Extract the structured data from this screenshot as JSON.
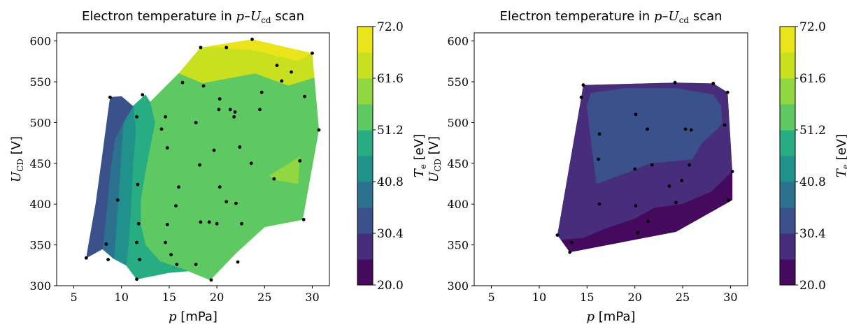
{
  "chart_data": [
    {
      "type": "heatmap",
      "title": "Electron temperature in p–U",
      "title_sub": "cd",
      "title_suffix": " scan",
      "xlabel_var": "p",
      "xlabel_unit": " [mPa]",
      "ylabel_var": "U",
      "ylabel_sub": "CD",
      "ylabel_unit": " [V]",
      "xlim": [
        3.2,
        31.8
      ],
      "ylim": [
        300,
        610
      ],
      "xticks": [
        5,
        10,
        15,
        20,
        25,
        30
      ],
      "yticks": [
        300,
        350,
        400,
        450,
        500,
        550,
        600
      ],
      "colorbar": {
        "label_var": "T",
        "label_sub": "e",
        "label_unit": " [eV]",
        "vmin": 20.0,
        "vmax": 72.0,
        "ticks": [
          "20.0",
          "30.4",
          "40.8",
          "51.2",
          "61.6",
          "72.0"
        ],
        "levels": [
          20.0,
          25.2,
          30.4,
          35.6,
          40.8,
          46.0,
          51.2,
          56.4,
          61.6,
          66.8,
          72.0
        ],
        "colors": [
          "#450a5d",
          "#472d7b",
          "#3b518b",
          "#2c718e",
          "#21918c",
          "#27ad81",
          "#5ec962",
          "#91d742",
          "#c8e020",
          "#e9e51a"
        ]
      },
      "hull": [
        [
          6.3,
          334
        ],
        [
          11.6,
          308
        ],
        [
          19.3,
          307
        ],
        [
          29.0,
          381
        ],
        [
          30.7,
          491
        ],
        [
          30.0,
          585
        ],
        [
          23.7,
          602
        ],
        [
          18.3,
          592
        ],
        [
          8.8,
          531
        ]
      ],
      "regions": [
        {
          "color": "#e9e51a",
          "polygon": [
            [
              18.3,
              592
            ],
            [
              23.7,
              602
            ],
            [
              30.0,
              585
            ],
            [
              28.5,
              575
            ],
            [
              24.0,
              588
            ],
            [
              20.0,
              592
            ]
          ]
        },
        {
          "color": "#c8e020",
          "polygon": [
            [
              16.0,
              560
            ],
            [
              18.3,
              592
            ],
            [
              20.0,
              592
            ],
            [
              24.0,
              588
            ],
            [
              28.5,
              575
            ],
            [
              30.0,
              585
            ],
            [
              30.3,
              555
            ],
            [
              27.5,
              545
            ],
            [
              24.0,
              560
            ],
            [
              21.0,
              552
            ],
            [
              18.5,
              548
            ]
          ]
        },
        {
          "color": "#5ec962",
          "polygon": [
            [
              13.0,
              525
            ],
            [
              16.0,
              560
            ],
            [
              18.5,
              548
            ],
            [
              24.0,
              560
            ],
            [
              27.5,
              545
            ],
            [
              30.3,
              555
            ],
            [
              30.7,
              491
            ],
            [
              29.0,
              381
            ],
            [
              25.0,
              372
            ],
            [
              22.0,
              340
            ],
            [
              19.3,
              307
            ],
            [
              17.0,
              318
            ],
            [
              14.0,
              330
            ],
            [
              12.5,
              350
            ],
            [
              12.0,
              375
            ],
            [
              12.0,
              405
            ],
            [
              12.5,
              440
            ],
            [
              13.0,
              470
            ],
            [
              13.5,
              500
            ]
          ]
        },
        {
          "color": "#91d742",
          "polygon": [
            [
              25.5,
              435
            ],
            [
              28.7,
              458
            ],
            [
              28.5,
              425
            ],
            [
              26.0,
              430
            ]
          ]
        },
        {
          "color": "#27ad81",
          "polygon": [
            [
              11.2,
              520
            ],
            [
              12.5,
              534
            ],
            [
              13.0,
              525
            ],
            [
              13.5,
              500
            ],
            [
              13.0,
              470
            ],
            [
              12.5,
              440
            ],
            [
              12.0,
              405
            ],
            [
              12.0,
              375
            ],
            [
              12.5,
              350
            ],
            [
              14.0,
              330
            ],
            [
              17.0,
              318
            ],
            [
              15.0,
              316
            ],
            [
              11.6,
              308
            ],
            [
              10.5,
              325
            ],
            [
              10.8,
              360
            ],
            [
              11.0,
              400
            ],
            [
              11.2,
              450
            ],
            [
              11.5,
              490
            ]
          ]
        },
        {
          "color": "#21918c",
          "polygon": [
            [
              10.2,
              500
            ],
            [
              11.2,
              520
            ],
            [
              11.5,
              490
            ],
            [
              11.2,
              450
            ],
            [
              11.0,
              400
            ],
            [
              10.8,
              360
            ],
            [
              10.5,
              325
            ],
            [
              9.2,
              333
            ],
            [
              9.5,
              380
            ],
            [
              9.8,
              430
            ],
            [
              10.0,
              470
            ]
          ]
        },
        {
          "color": "#2c718e",
          "polygon": [
            [
              9.3,
              480
            ],
            [
              10.2,
              500
            ],
            [
              10.0,
              470
            ],
            [
              9.8,
              430
            ],
            [
              9.5,
              380
            ],
            [
              9.2,
              333
            ],
            [
              8.0,
              345
            ],
            [
              8.5,
              400
            ],
            [
              8.8,
              440
            ]
          ]
        },
        {
          "color": "#3b518b",
          "polygon": [
            [
              8.8,
              531
            ],
            [
              10.0,
              532
            ],
            [
              11.2,
              520
            ],
            [
              10.2,
              500
            ],
            [
              9.3,
              480
            ],
            [
              8.8,
              440
            ],
            [
              8.5,
              400
            ],
            [
              8.0,
              345
            ],
            [
              6.3,
              334
            ],
            [
              7.3,
              400
            ],
            [
              8.0,
              460
            ]
          ]
        }
      ],
      "points": [
        [
          6.3,
          334
        ],
        [
          8.4,
          351
        ],
        [
          8.6,
          332
        ],
        [
          9.6,
          405
        ],
        [
          8.8,
          531
        ],
        [
          11.6,
          507
        ],
        [
          11.7,
          424
        ],
        [
          11.8,
          376
        ],
        [
          11.6,
          353
        ],
        [
          11.9,
          332
        ],
        [
          11.6,
          308
        ],
        [
          12.2,
          534
        ],
        [
          14.2,
          492
        ],
        [
          14.6,
          507
        ],
        [
          14.8,
          469
        ],
        [
          14.8,
          375
        ],
        [
          14.6,
          353
        ],
        [
          15.2,
          338
        ],
        [
          15.7,
          398
        ],
        [
          16.0,
          421
        ],
        [
          15.8,
          326
        ],
        [
          16.4,
          549
        ],
        [
          17.8,
          500
        ],
        [
          17.8,
          326
        ],
        [
          18.2,
          448
        ],
        [
          18.3,
          378
        ],
        [
          18.3,
          592
        ],
        [
          18.6,
          545
        ],
        [
          19.2,
          378
        ],
        [
          19.4,
          307
        ],
        [
          19.7,
          466
        ],
        [
          20.0,
          376
        ],
        [
          20.3,
          529
        ],
        [
          20.2,
          516
        ],
        [
          20.3,
          421
        ],
        [
          21.0,
          592
        ],
        [
          21.0,
          403
        ],
        [
          21.4,
          516
        ],
        [
          21.8,
          507
        ],
        [
          21.9,
          513
        ],
        [
          22.0,
          401
        ],
        [
          22.2,
          329
        ],
        [
          22.4,
          470
        ],
        [
          22.6,
          376
        ],
        [
          23.7,
          602
        ],
        [
          23.6,
          450
        ],
        [
          24.5,
          516
        ],
        [
          24.7,
          537
        ],
        [
          26.0,
          431
        ],
        [
          26.3,
          570
        ],
        [
          26.8,
          551
        ],
        [
          27.8,
          562
        ],
        [
          28.7,
          453
        ],
        [
          29.1,
          381
        ],
        [
          29.2,
          532
        ],
        [
          30.0,
          585
        ],
        [
          30.7,
          491
        ]
      ]
    },
    {
      "type": "heatmap",
      "title": "Electron temperature in p–U",
      "title_sub": "cd",
      "title_suffix": " scan",
      "xlabel_var": "p",
      "xlabel_unit": " [mPa]",
      "ylabel_var": "U",
      "ylabel_sub": "CD",
      "ylabel_unit": " [V]",
      "xlim": [
        3.2,
        31.8
      ],
      "ylim": [
        300,
        610
      ],
      "xticks": [
        5,
        10,
        15,
        20,
        25,
        30
      ],
      "yticks": [
        300,
        350,
        400,
        450,
        500,
        550,
        600
      ],
      "colorbar": {
        "label_var": "T",
        "label_sub": "e",
        "label_unit": " [eV]",
        "vmin": 20.0,
        "vmax": 72.0,
        "ticks": [
          "20.0",
          "30.4",
          "40.8",
          "51.2",
          "61.6",
          "72.0"
        ],
        "levels": [
          20.0,
          25.2,
          30.4,
          35.6,
          40.8,
          46.0,
          51.2,
          56.4,
          61.6,
          66.8,
          72.0
        ],
        "colors": [
          "#450a5d",
          "#472d7b",
          "#3b518b",
          "#2c718e",
          "#21918c",
          "#27ad81",
          "#5ec962",
          "#91d742",
          "#c8e020",
          "#e9e51a"
        ]
      },
      "hull": [
        [
          11.9,
          362
        ],
        [
          13.2,
          341
        ],
        [
          24.3,
          366
        ],
        [
          30.2,
          405
        ],
        [
          30.2,
          440
        ],
        [
          29.7,
          537
        ],
        [
          28.2,
          548
        ],
        [
          24.3,
          549
        ],
        [
          14.6,
          546
        ],
        [
          14.4,
          531
        ]
      ],
      "regions": [
        {
          "color": "#472d7b",
          "polygon": [
            [
              11.9,
              362
            ],
            [
              13.2,
              341
            ],
            [
              24.3,
              366
            ],
            [
              30.2,
              405
            ],
            [
              30.2,
              440
            ],
            [
              29.7,
              537
            ],
            [
              28.2,
              548
            ],
            [
              24.3,
              549
            ],
            [
              14.6,
              546
            ],
            [
              14.4,
              531
            ]
          ]
        },
        {
          "color": "#3b518b",
          "polygon": [
            [
              15.0,
              520
            ],
            [
              15.4,
              536
            ],
            [
              19.0,
              542
            ],
            [
              24.3,
              542
            ],
            [
              28.2,
              534
            ],
            [
              29.0,
              520
            ],
            [
              29.1,
              500
            ],
            [
              28.6,
              492
            ],
            [
              27.0,
              475
            ],
            [
              26.0,
              455
            ],
            [
              21.5,
              450
            ],
            [
              19.5,
              440
            ],
            [
              16.0,
              425
            ],
            [
              15.5,
              470
            ]
          ]
        },
        {
          "color": "#450a5d",
          "polygon": [
            [
              13.2,
              341
            ],
            [
              24.3,
              366
            ],
            [
              30.2,
              405
            ],
            [
              30.2,
              440
            ],
            [
              28.0,
              415
            ],
            [
              25.0,
              400
            ],
            [
              22.0,
              395
            ],
            [
              20.0,
              382
            ],
            [
              17.0,
              370
            ],
            [
              14.5,
              358
            ],
            [
              12.3,
              356
            ]
          ]
        }
      ],
      "points": [
        [
          11.9,
          362
        ],
        [
          13.2,
          341
        ],
        [
          13.4,
          353
        ],
        [
          14.4,
          531
        ],
        [
          14.6,
          546
        ],
        [
          16.3,
          486
        ],
        [
          16.2,
          455
        ],
        [
          16.3,
          400
        ],
        [
          20.1,
          510
        ],
        [
          20.0,
          443
        ],
        [
          20.1,
          398
        ],
        [
          20.3,
          365
        ],
        [
          21.3,
          492
        ],
        [
          21.4,
          379
        ],
        [
          21.8,
          448
        ],
        [
          23.6,
          422
        ],
        [
          24.2,
          549
        ],
        [
          24.3,
          402
        ],
        [
          24.9,
          429
        ],
        [
          25.3,
          492
        ],
        [
          25.7,
          448
        ],
        [
          25.9,
          491
        ],
        [
          28.2,
          548
        ],
        [
          29.4,
          497
        ],
        [
          29.7,
          537
        ],
        [
          29.8,
          405
        ],
        [
          30.2,
          440
        ]
      ]
    }
  ]
}
